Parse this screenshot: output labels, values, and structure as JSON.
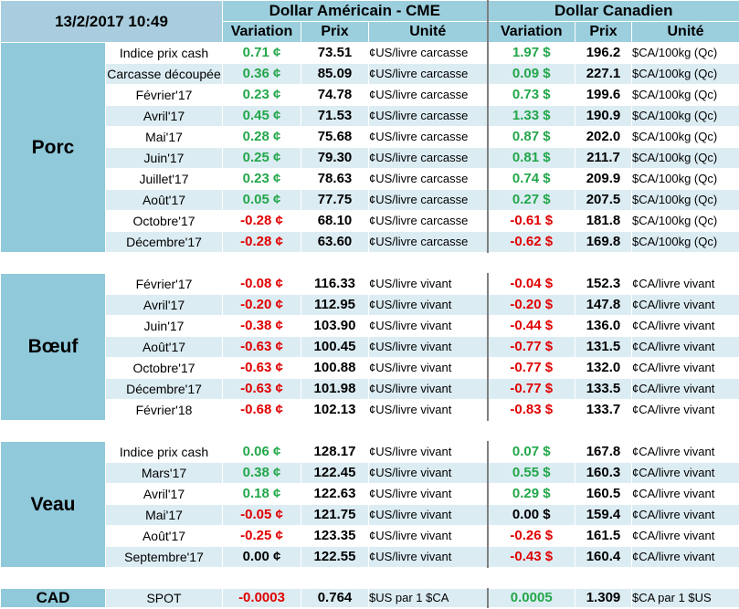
{
  "header": {
    "datetime": "13/2/2017 10:49",
    "usd_title": "Dollar Américain - CME",
    "cad_title": "Dollar Canadien",
    "col_variation": "Variation",
    "col_prix": "Prix",
    "col_unite": "Unité"
  },
  "colors": {
    "positive": "#22a74a",
    "negative": "#e00000",
    "header_blue": "#9ccfde",
    "row_light": "#dcecf3"
  },
  "sections": {
    "porc": {
      "name": "Porc",
      "rows": [
        {
          "label": "Indice prix cash",
          "usd_var": "0.71 ¢",
          "usd_price": "73.51",
          "usd_unit": "¢US/livre carcasse",
          "cad_var": "1.97 $",
          "cad_price": "196.2",
          "cad_unit": "$CA/100kg (Qc)"
        },
        {
          "label": "Carcasse découpée",
          "usd_var": "0.36 ¢",
          "usd_price": "85.09",
          "usd_unit": "¢US/livre carcasse",
          "cad_var": "0.09 $",
          "cad_price": "227.1",
          "cad_unit": "$CA/100kg (Qc)"
        },
        {
          "label": "Février'17",
          "usd_var": "0.23 ¢",
          "usd_price": "74.78",
          "usd_unit": "¢US/livre carcasse",
          "cad_var": "0.73 $",
          "cad_price": "199.6",
          "cad_unit": "$CA/100kg (Qc)"
        },
        {
          "label": "Avril'17",
          "usd_var": "0.45 ¢",
          "usd_price": "71.53",
          "usd_unit": "¢US/livre carcasse",
          "cad_var": "1.33 $",
          "cad_price": "190.9",
          "cad_unit": "$CA/100kg (Qc)"
        },
        {
          "label": "Mai'17",
          "usd_var": "0.28 ¢",
          "usd_price": "75.68",
          "usd_unit": "¢US/livre carcasse",
          "cad_var": "0.87 $",
          "cad_price": "202.0",
          "cad_unit": "$CA/100kg (Qc)"
        },
        {
          "label": "Juin'17",
          "usd_var": "0.25 ¢",
          "usd_price": "79.30",
          "usd_unit": "¢US/livre carcasse",
          "cad_var": "0.81 $",
          "cad_price": "211.7",
          "cad_unit": "$CA/100kg (Qc)"
        },
        {
          "label": "Juillet'17",
          "usd_var": "0.23 ¢",
          "usd_price": "78.63",
          "usd_unit": "¢US/livre carcasse",
          "cad_var": "0.74 $",
          "cad_price": "209.9",
          "cad_unit": "$CA/100kg (Qc)"
        },
        {
          "label": "Août'17",
          "usd_var": "0.05 ¢",
          "usd_price": "77.75",
          "usd_unit": "¢US/livre carcasse",
          "cad_var": "0.27 $",
          "cad_price": "207.5",
          "cad_unit": "$CA/100kg (Qc)"
        },
        {
          "label": "Octobre'17",
          "usd_var": "-0.28 ¢",
          "usd_price": "68.10",
          "usd_unit": "¢US/livre carcasse",
          "cad_var": "-0.61 $",
          "cad_price": "181.8",
          "cad_unit": "$CA/100kg (Qc)"
        },
        {
          "label": "Décembre'17",
          "usd_var": "-0.28 ¢",
          "usd_price": "63.60",
          "usd_unit": "¢US/livre carcasse",
          "cad_var": "-0.62 $",
          "cad_price": "169.8",
          "cad_unit": "$CA/100kg (Qc)"
        }
      ]
    },
    "boeuf": {
      "name": "Bœuf",
      "rows": [
        {
          "label": "Février'17",
          "usd_var": "-0.08 ¢",
          "usd_price": "116.33",
          "usd_unit": "¢US/livre vivant",
          "cad_var": "-0.04 $",
          "cad_price": "152.3",
          "cad_unit": "¢CA/livre vivant"
        },
        {
          "label": "Avril'17",
          "usd_var": "-0.20 ¢",
          "usd_price": "112.95",
          "usd_unit": "¢US/livre vivant",
          "cad_var": "-0.20 $",
          "cad_price": "147.8",
          "cad_unit": "¢CA/livre vivant"
        },
        {
          "label": "Juin'17",
          "usd_var": "-0.38 ¢",
          "usd_price": "103.90",
          "usd_unit": "¢US/livre vivant",
          "cad_var": "-0.44 $",
          "cad_price": "136.0",
          "cad_unit": "¢CA/livre vivant"
        },
        {
          "label": "Août'17",
          "usd_var": "-0.63 ¢",
          "usd_price": "100.45",
          "usd_unit": "¢US/livre vivant",
          "cad_var": "-0.77 $",
          "cad_price": "131.5",
          "cad_unit": "¢CA/livre vivant"
        },
        {
          "label": "Octobre'17",
          "usd_var": "-0.63 ¢",
          "usd_price": "100.88",
          "usd_unit": "¢US/livre vivant",
          "cad_var": "-0.77 $",
          "cad_price": "132.0",
          "cad_unit": "¢CA/livre vivant"
        },
        {
          "label": "Décembre'17",
          "usd_var": "-0.63 ¢",
          "usd_price": "101.98",
          "usd_unit": "¢US/livre vivant",
          "cad_var": "-0.77 $",
          "cad_price": "133.5",
          "cad_unit": "¢CA/livre vivant"
        },
        {
          "label": "Février'18",
          "usd_var": "-0.68 ¢",
          "usd_price": "102.13",
          "usd_unit": "¢US/livre vivant",
          "cad_var": "-0.83 $",
          "cad_price": "133.7",
          "cad_unit": "¢CA/livre vivant"
        }
      ]
    },
    "veau": {
      "name": "Veau",
      "rows": [
        {
          "label": "Indice prix cash",
          "usd_var": "0.06 ¢",
          "usd_price": "128.17",
          "usd_unit": "¢US/livre vivant",
          "cad_var": "0.07 $",
          "cad_price": "167.8",
          "cad_unit": "¢CA/livre vivant"
        },
        {
          "label": "Mars'17",
          "usd_var": "0.38 ¢",
          "usd_price": "122.45",
          "usd_unit": "¢US/livre vivant",
          "cad_var": "0.55 $",
          "cad_price": "160.3",
          "cad_unit": "¢CA/livre vivant"
        },
        {
          "label": "Avril'17",
          "usd_var": "0.18 ¢",
          "usd_price": "122.63",
          "usd_unit": "¢US/livre vivant",
          "cad_var": "0.29 $",
          "cad_price": "160.5",
          "cad_unit": "¢CA/livre vivant"
        },
        {
          "label": "Mai'17",
          "usd_var": "-0.05 ¢",
          "usd_price": "121.75",
          "usd_unit": "¢US/livre vivant",
          "cad_var": "0.00 $",
          "cad_price": "159.4",
          "cad_unit": "¢CA/livre vivant"
        },
        {
          "label": "Août'17",
          "usd_var": "-0.25 ¢",
          "usd_price": "123.35",
          "usd_unit": "¢US/livre vivant",
          "cad_var": "-0.26 $",
          "cad_price": "161.5",
          "cad_unit": "¢CA/livre vivant"
        },
        {
          "label": "Septembre'17",
          "usd_var": "0.00 ¢",
          "usd_price": "122.55",
          "usd_unit": "¢US/livre vivant",
          "cad_var": "-0.43 $",
          "cad_price": "160.4",
          "cad_unit": "¢CA/livre vivant"
        }
      ]
    }
  },
  "spot": {
    "group": "CAD",
    "label": "SPOT",
    "usd_var": "-0.0003",
    "usd_price": "0.764",
    "usd_unit": "$US par 1 $CA",
    "cad_var": "0.0005",
    "cad_price": "1.309",
    "cad_unit": "$CA par 1 $US"
  }
}
